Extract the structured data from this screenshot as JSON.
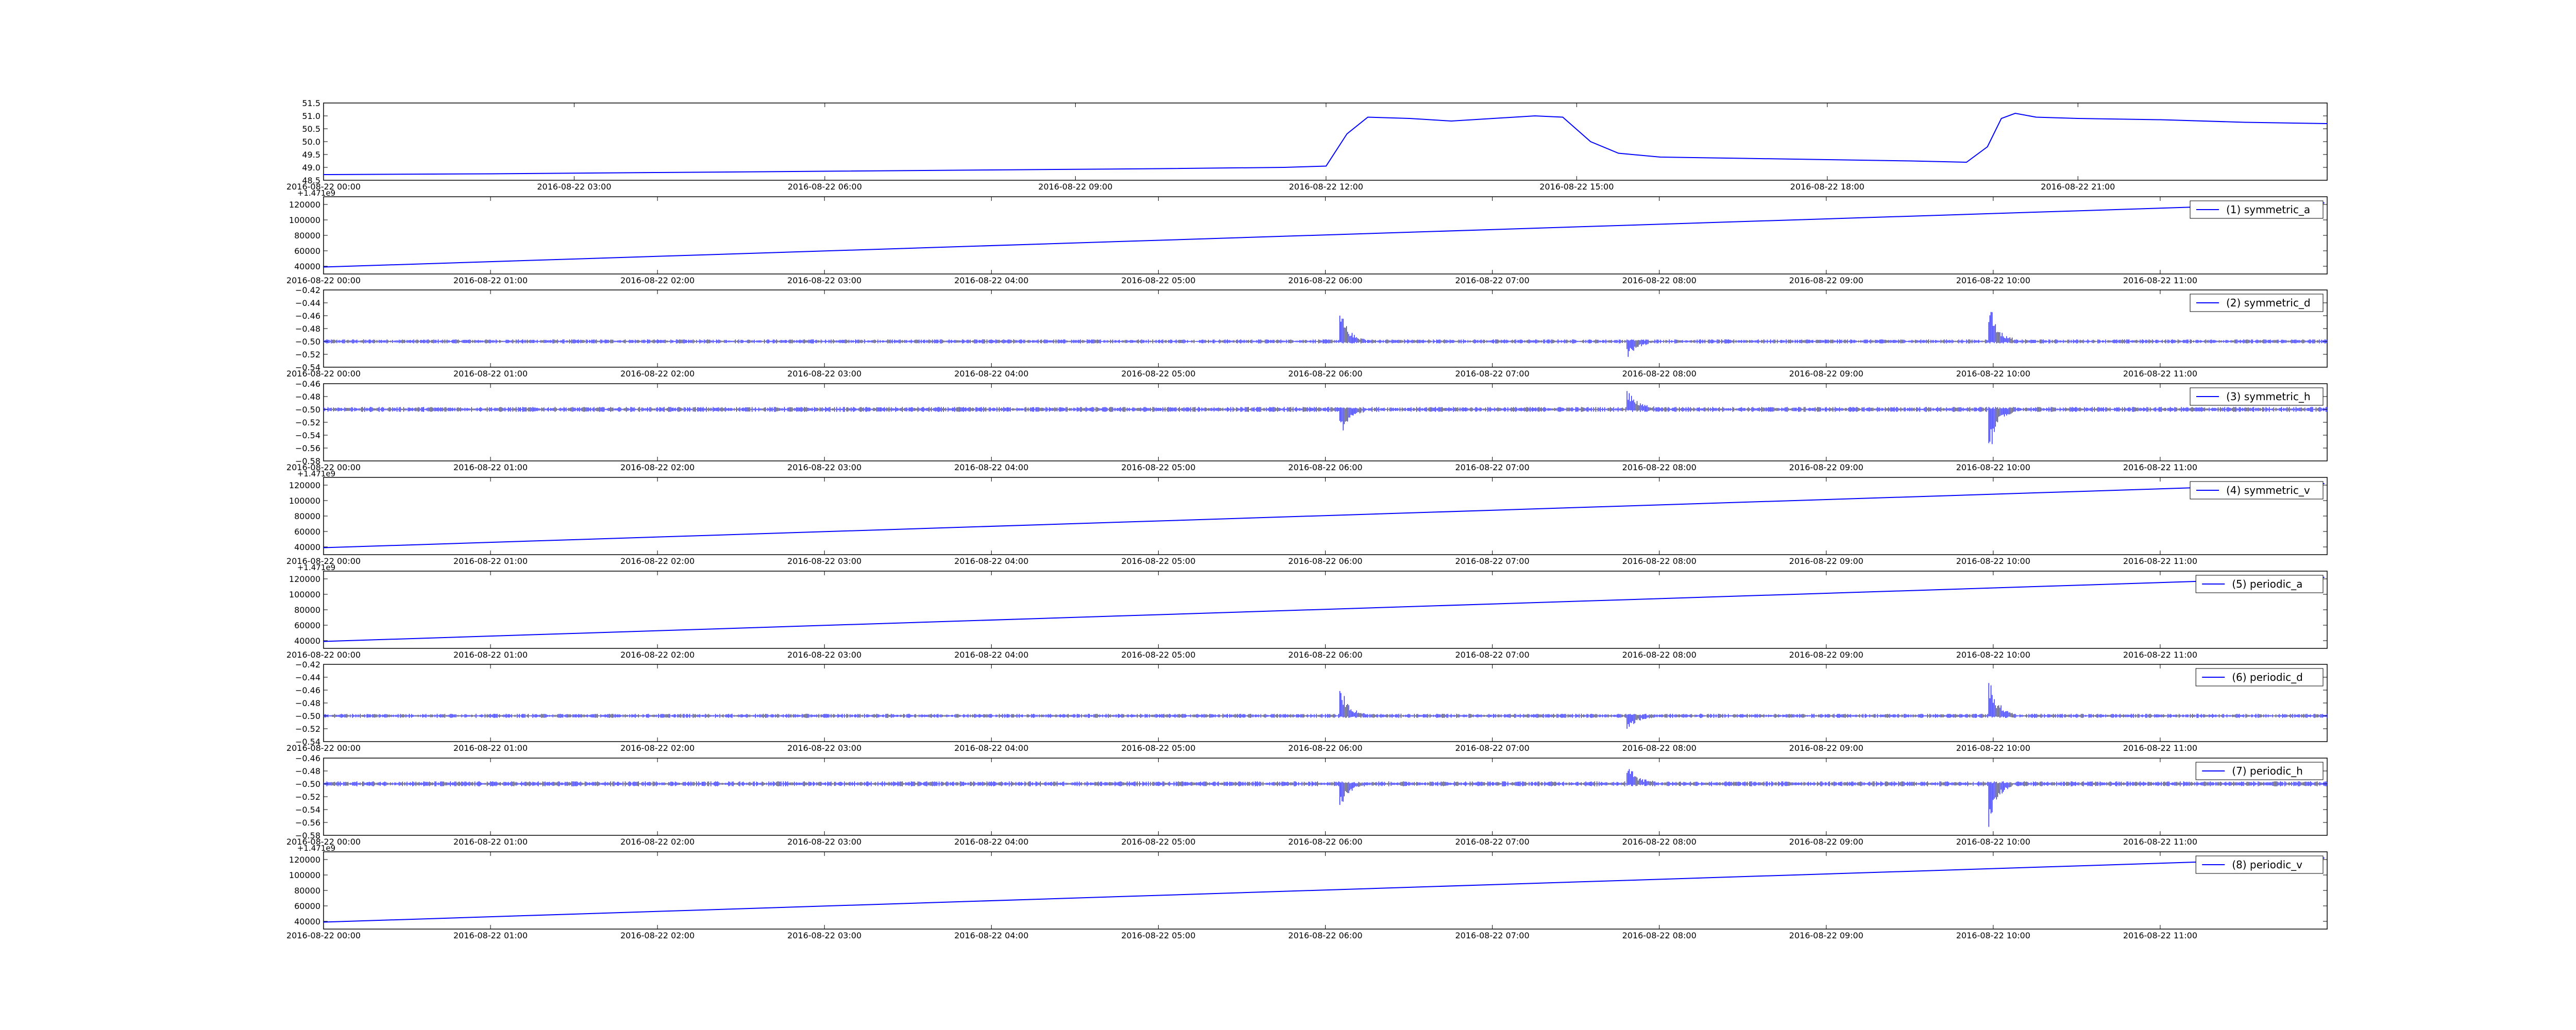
{
  "figure": {
    "background": "#ffffff",
    "line_color": "#0000ff"
  },
  "chart_data": [
    {
      "type": "line",
      "series": [
        {
          "x": [
            "2016-08-22 00:00",
            "2016-08-22 02:00",
            "2016-08-22 04:00",
            "2016-08-22 06:00",
            "2016-08-22 08:00",
            "2016-08-22 10:00",
            "2016-08-22 11:30",
            "2016-08-22 12:00",
            "2016-08-22 12:15",
            "2016-08-22 12:30",
            "2016-08-22 13:00",
            "2016-08-22 13:30",
            "2016-08-22 14:00",
            "2016-08-22 14:30",
            "2016-08-22 14:50",
            "2016-08-22 15:10",
            "2016-08-22 15:30",
            "2016-08-22 16:00",
            "2016-08-22 17:00",
            "2016-08-22 18:00",
            "2016-08-22 19:00",
            "2016-08-22 19:40",
            "2016-08-22 19:55",
            "2016-08-22 20:05",
            "2016-08-22 20:15",
            "2016-08-22 20:30",
            "2016-08-22 21:00",
            "2016-08-22 22:00",
            "2016-08-22 23:00",
            "2016-08-22 23:59"
          ],
          "values": [
            48.72,
            48.75,
            48.8,
            48.85,
            48.9,
            48.95,
            49.0,
            49.05,
            50.3,
            50.95,
            50.9,
            50.8,
            50.9,
            51.0,
            50.95,
            50.0,
            49.55,
            49.4,
            49.35,
            49.3,
            49.25,
            49.2,
            49.8,
            50.9,
            51.1,
            50.95,
            50.9,
            50.85,
            50.75,
            50.7
          ]
        }
      ],
      "xticks": [
        "2016-08-22 00:00",
        "2016-08-22 03:00",
        "2016-08-22 06:00",
        "2016-08-22 09:00",
        "2016-08-22 12:00",
        "2016-08-22 15:00",
        "2016-08-22 18:00",
        "2016-08-22 21:00"
      ],
      "xlim": [
        "2016-08-22 00:00",
        "2016-08-22 23:59"
      ],
      "yticks": [
        "49.0",
        "49.5",
        "50.0",
        "50.5",
        "51.0",
        "51.5"
      ],
      "extra_ytick": "48.5",
      "ylim": [
        48.5,
        51.5
      ],
      "legend": null,
      "grid": false
    },
    {
      "type": "line",
      "offset_label": "+1.471e9",
      "series": [
        {
          "name": "(1) symmetric_a",
          "x": [
            "2016-08-22 00:00",
            "2016-08-22 11:59"
          ],
          "values": [
            39000,
            122000
          ],
          "style": "ramp"
        }
      ],
      "xticks": [
        "2016-08-22 00:00",
        "2016-08-22 01:00",
        "2016-08-22 02:00",
        "2016-08-22 03:00",
        "2016-08-22 04:00",
        "2016-08-22 05:00",
        "2016-08-22 06:00",
        "2016-08-22 07:00",
        "2016-08-22 08:00",
        "2016-08-22 09:00",
        "2016-08-22 10:00",
        "2016-08-22 11:00"
      ],
      "xlim": [
        "2016-08-22 00:00",
        "2016-08-22 12:00"
      ],
      "yticks": [
        "40000",
        "60000",
        "80000",
        "100000",
        "120000"
      ],
      "ylim": [
        30000,
        130000
      ],
      "legend": "top-right",
      "grid": false
    },
    {
      "type": "line",
      "series": [
        {
          "name": "(2) symmetric_d",
          "base": -0.5,
          "noise": 0.0025,
          "bursts": [
            {
              "at": "2016-08-22 06:06",
              "amp": 0.04,
              "dir": "up",
              "width_min": 8
            },
            {
              "at": "2016-08-22 07:49",
              "amp": 0.022,
              "dir": "down",
              "width_min": 9
            },
            {
              "at": "2016-08-22 09:59",
              "amp": 0.06,
              "dir": "up",
              "width_min": 8
            }
          ],
          "style": "noise"
        }
      ],
      "xticks": [
        "2016-08-22 00:00",
        "2016-08-22 01:00",
        "2016-08-22 02:00",
        "2016-08-22 03:00",
        "2016-08-22 04:00",
        "2016-08-22 05:00",
        "2016-08-22 06:00",
        "2016-08-22 07:00",
        "2016-08-22 08:00",
        "2016-08-22 09:00",
        "2016-08-22 10:00",
        "2016-08-22 11:00"
      ],
      "xlim": [
        "2016-08-22 00:00",
        "2016-08-22 12:00"
      ],
      "yticks": [
        "−0.52",
        "−0.50",
        "−0.48",
        "−0.46",
        "−0.44",
        "−0.42"
      ],
      "extra_ytick": "−0.54",
      "ylim": [
        -0.54,
        -0.42
      ],
      "legend": "top-right",
      "grid": false
    },
    {
      "type": "line",
      "series": [
        {
          "name": "(3) symmetric_h",
          "base": -0.5,
          "noise": 0.003,
          "bursts": [
            {
              "at": "2016-08-22 06:06",
              "amp": 0.035,
              "dir": "down",
              "width_min": 8
            },
            {
              "at": "2016-08-22 07:49",
              "amp": 0.03,
              "dir": "up",
              "width_min": 9
            },
            {
              "at": "2016-08-22 09:59",
              "amp": 0.065,
              "dir": "down",
              "width_min": 8
            }
          ],
          "style": "noise"
        }
      ],
      "xticks": [
        "2016-08-22 00:00",
        "2016-08-22 01:00",
        "2016-08-22 02:00",
        "2016-08-22 03:00",
        "2016-08-22 04:00",
        "2016-08-22 05:00",
        "2016-08-22 06:00",
        "2016-08-22 07:00",
        "2016-08-22 08:00",
        "2016-08-22 09:00",
        "2016-08-22 10:00",
        "2016-08-22 11:00"
      ],
      "xlim": [
        "2016-08-22 00:00",
        "2016-08-22 12:00"
      ],
      "yticks": [
        "−0.56",
        "−0.54",
        "−0.52",
        "−0.50",
        "−0.48",
        "−0.46"
      ],
      "extra_ytick": "−0.58",
      "ylim": [
        -0.58,
        -0.46
      ],
      "legend": "top-right",
      "grid": false
    },
    {
      "type": "line",
      "offset_label": "+1.471e9",
      "series": [
        {
          "name": "(4) symmetric_v",
          "x": [
            "2016-08-22 00:00",
            "2016-08-22 11:59"
          ],
          "values": [
            39000,
            122000
          ],
          "style": "ramp"
        }
      ],
      "xticks": [
        "2016-08-22 00:00",
        "2016-08-22 01:00",
        "2016-08-22 02:00",
        "2016-08-22 03:00",
        "2016-08-22 04:00",
        "2016-08-22 05:00",
        "2016-08-22 06:00",
        "2016-08-22 07:00",
        "2016-08-22 08:00",
        "2016-08-22 09:00",
        "2016-08-22 10:00",
        "2016-08-22 11:00"
      ],
      "xlim": [
        "2016-08-22 00:00",
        "2016-08-22 12:00"
      ],
      "yticks": [
        "40000",
        "60000",
        "80000",
        "100000",
        "120000"
      ],
      "ylim": [
        30000,
        130000
      ],
      "legend": "top-right",
      "grid": false
    },
    {
      "type": "line",
      "offset_label": "+1.471e9",
      "series": [
        {
          "name": "(5) periodic_a",
          "x": [
            "2016-08-22 00:00",
            "2016-08-22 11:59"
          ],
          "values": [
            39000,
            122000
          ],
          "style": "ramp"
        }
      ],
      "xticks": [
        "2016-08-22 00:00",
        "2016-08-22 01:00",
        "2016-08-22 02:00",
        "2016-08-22 03:00",
        "2016-08-22 04:00",
        "2016-08-22 05:00",
        "2016-08-22 06:00",
        "2016-08-22 07:00",
        "2016-08-22 08:00",
        "2016-08-22 09:00",
        "2016-08-22 10:00",
        "2016-08-22 11:00"
      ],
      "xlim": [
        "2016-08-22 00:00",
        "2016-08-22 12:00"
      ],
      "yticks": [
        "40000",
        "60000",
        "80000",
        "100000",
        "120000"
      ],
      "ylim": [
        30000,
        130000
      ],
      "legend": "top-right",
      "grid": false
    },
    {
      "type": "line",
      "series": [
        {
          "name": "(6) periodic_d",
          "base": -0.5,
          "noise": 0.0025,
          "bursts": [
            {
              "at": "2016-08-22 06:06",
              "amp": 0.04,
              "dir": "up",
              "width_min": 8
            },
            {
              "at": "2016-08-22 07:49",
              "amp": 0.022,
              "dir": "down",
              "width_min": 9
            },
            {
              "at": "2016-08-22 09:59",
              "amp": 0.06,
              "dir": "up",
              "width_min": 8
            }
          ],
          "style": "noise"
        }
      ],
      "xticks": [
        "2016-08-22 00:00",
        "2016-08-22 01:00",
        "2016-08-22 02:00",
        "2016-08-22 03:00",
        "2016-08-22 04:00",
        "2016-08-22 05:00",
        "2016-08-22 06:00",
        "2016-08-22 07:00",
        "2016-08-22 08:00",
        "2016-08-22 09:00",
        "2016-08-22 10:00",
        "2016-08-22 11:00"
      ],
      "xlim": [
        "2016-08-22 00:00",
        "2016-08-22 12:00"
      ],
      "yticks": [
        "−0.52",
        "−0.50",
        "−0.48",
        "−0.46",
        "−0.44",
        "−0.42"
      ],
      "extra_ytick": "−0.54",
      "ylim": [
        -0.54,
        -0.42
      ],
      "legend": "top-right",
      "grid": false
    },
    {
      "type": "line",
      "series": [
        {
          "name": "(7) periodic_h",
          "base": -0.5,
          "noise": 0.003,
          "bursts": [
            {
              "at": "2016-08-22 06:06",
              "amp": 0.035,
              "dir": "down",
              "width_min": 8
            },
            {
              "at": "2016-08-22 07:49",
              "amp": 0.03,
              "dir": "up",
              "width_min": 9
            },
            {
              "at": "2016-08-22 09:59",
              "amp": 0.065,
              "dir": "down",
              "width_min": 8
            }
          ],
          "style": "noise"
        }
      ],
      "xticks": [
        "2016-08-22 00:00",
        "2016-08-22 01:00",
        "2016-08-22 02:00",
        "2016-08-22 03:00",
        "2016-08-22 04:00",
        "2016-08-22 05:00",
        "2016-08-22 06:00",
        "2016-08-22 07:00",
        "2016-08-22 08:00",
        "2016-08-22 09:00",
        "2016-08-22 10:00",
        "2016-08-22 11:00"
      ],
      "xlim": [
        "2016-08-22 00:00",
        "2016-08-22 12:00"
      ],
      "yticks": [
        "−0.56",
        "−0.54",
        "−0.52",
        "−0.50",
        "−0.48",
        "−0.46"
      ],
      "extra_ytick": "−0.58",
      "ylim": [
        -0.58,
        -0.46
      ],
      "legend": "top-right",
      "grid": false
    },
    {
      "type": "line",
      "offset_label": "+1.471e9",
      "series": [
        {
          "name": "(8) periodic_v",
          "x": [
            "2016-08-22 00:00",
            "2016-08-22 11:59"
          ],
          "values": [
            39000,
            122000
          ],
          "style": "ramp"
        }
      ],
      "xticks": [
        "2016-08-22 00:00",
        "2016-08-22 01:00",
        "2016-08-22 02:00",
        "2016-08-22 03:00",
        "2016-08-22 04:00",
        "2016-08-22 05:00",
        "2016-08-22 06:00",
        "2016-08-22 07:00",
        "2016-08-22 08:00",
        "2016-08-22 09:00",
        "2016-08-22 10:00",
        "2016-08-22 11:00"
      ],
      "xlim": [
        "2016-08-22 00:00",
        "2016-08-22 12:00"
      ],
      "yticks": [
        "40000",
        "60000",
        "80000",
        "100000",
        "120000"
      ],
      "ylim": [
        30000,
        130000
      ],
      "legend": "top-right",
      "grid": false
    }
  ]
}
